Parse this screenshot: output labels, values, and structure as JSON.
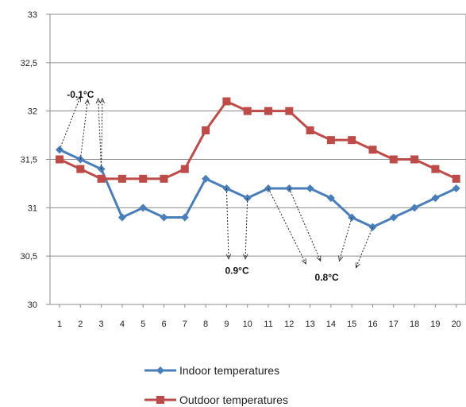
{
  "chart_data": {
    "type": "line",
    "x": [
      1,
      2,
      3,
      4,
      5,
      6,
      7,
      8,
      9,
      10,
      11,
      12,
      13,
      14,
      15,
      16,
      17,
      18,
      19,
      20
    ],
    "ylim": [
      30,
      33
    ],
    "y_ticks": [
      "30",
      "30,5",
      "31",
      "31,5",
      "32",
      "32,5",
      "33"
    ],
    "x_ticks": [
      "1",
      "2",
      "3",
      "4",
      "5",
      "6",
      "7",
      "8",
      "9",
      "10",
      "11",
      "12",
      "13",
      "14",
      "15",
      "16",
      "17",
      "18",
      "19",
      "20"
    ],
    "grid": "horizontal",
    "legend_position": "bottom",
    "series": [
      {
        "name": "Indoor temperatures",
        "color": "#4a7ebb",
        "marker": "diamond",
        "values": [
          31.6,
          31.5,
          31.4,
          30.9,
          31.0,
          30.9,
          30.9,
          31.3,
          31.2,
          31.1,
          31.2,
          31.2,
          31.2,
          31.1,
          30.9,
          30.8,
          30.9,
          31.0,
          31.1,
          31.2
        ]
      },
      {
        "name": "Outdoor temperatures",
        "color": "#be4b48",
        "marker": "square",
        "values": [
          31.5,
          31.4,
          31.3,
          31.3,
          31.3,
          31.3,
          31.4,
          31.8,
          32.1,
          32.0,
          32.0,
          32.0,
          31.8,
          31.7,
          31.7,
          31.6,
          31.5,
          31.5,
          31.4,
          31.3
        ]
      }
    ],
    "annotations": [
      {
        "text": "-0.1°C",
        "anchor": {
          "x": 2,
          "y": 32.12
        },
        "arrows": [
          {
            "from": {
              "x": 1,
              "y": 31.6
            },
            "to": {
              "x": 2,
              "y": 32.15
            }
          },
          {
            "from": {
              "x": 2,
              "y": 31.5
            },
            "to": {
              "x": 2.35,
              "y": 32.12
            }
          },
          {
            "from": {
              "x": 3,
              "y": 31.4
            },
            "to": {
              "x": 2.85,
              "y": 32.13
            }
          },
          {
            "from": {
              "x": 3,
              "y": 31.4
            },
            "to": {
              "x": 3.05,
              "y": 32.13
            }
          }
        ]
      },
      {
        "text": "0.9°C",
        "anchor": {
          "x": 9.5,
          "y": 30.3
        },
        "arrows": [
          {
            "from": {
              "x": 9,
              "y": 31.2
            },
            "to": {
              "x": 9.1,
              "y": 30.47
            }
          },
          {
            "from": {
              "x": 10,
              "y": 31.1
            },
            "to": {
              "x": 9.9,
              "y": 30.47
            }
          }
        ]
      },
      {
        "text": "0.8°C",
        "anchor": {
          "x": 13.8,
          "y": 30.23
        },
        "arrows": [
          {
            "from": {
              "x": 11,
              "y": 31.2
            },
            "to": {
              "x": 12.8,
              "y": 30.42
            }
          },
          {
            "from": {
              "x": 12,
              "y": 31.2
            },
            "to": {
              "x": 13.5,
              "y": 30.45
            }
          },
          {
            "from": {
              "x": 15,
              "y": 30.9
            },
            "to": {
              "x": 14.4,
              "y": 30.45
            }
          },
          {
            "from": {
              "x": 16,
              "y": 30.8
            },
            "to": {
              "x": 15.2,
              "y": 30.38
            }
          }
        ]
      }
    ]
  }
}
